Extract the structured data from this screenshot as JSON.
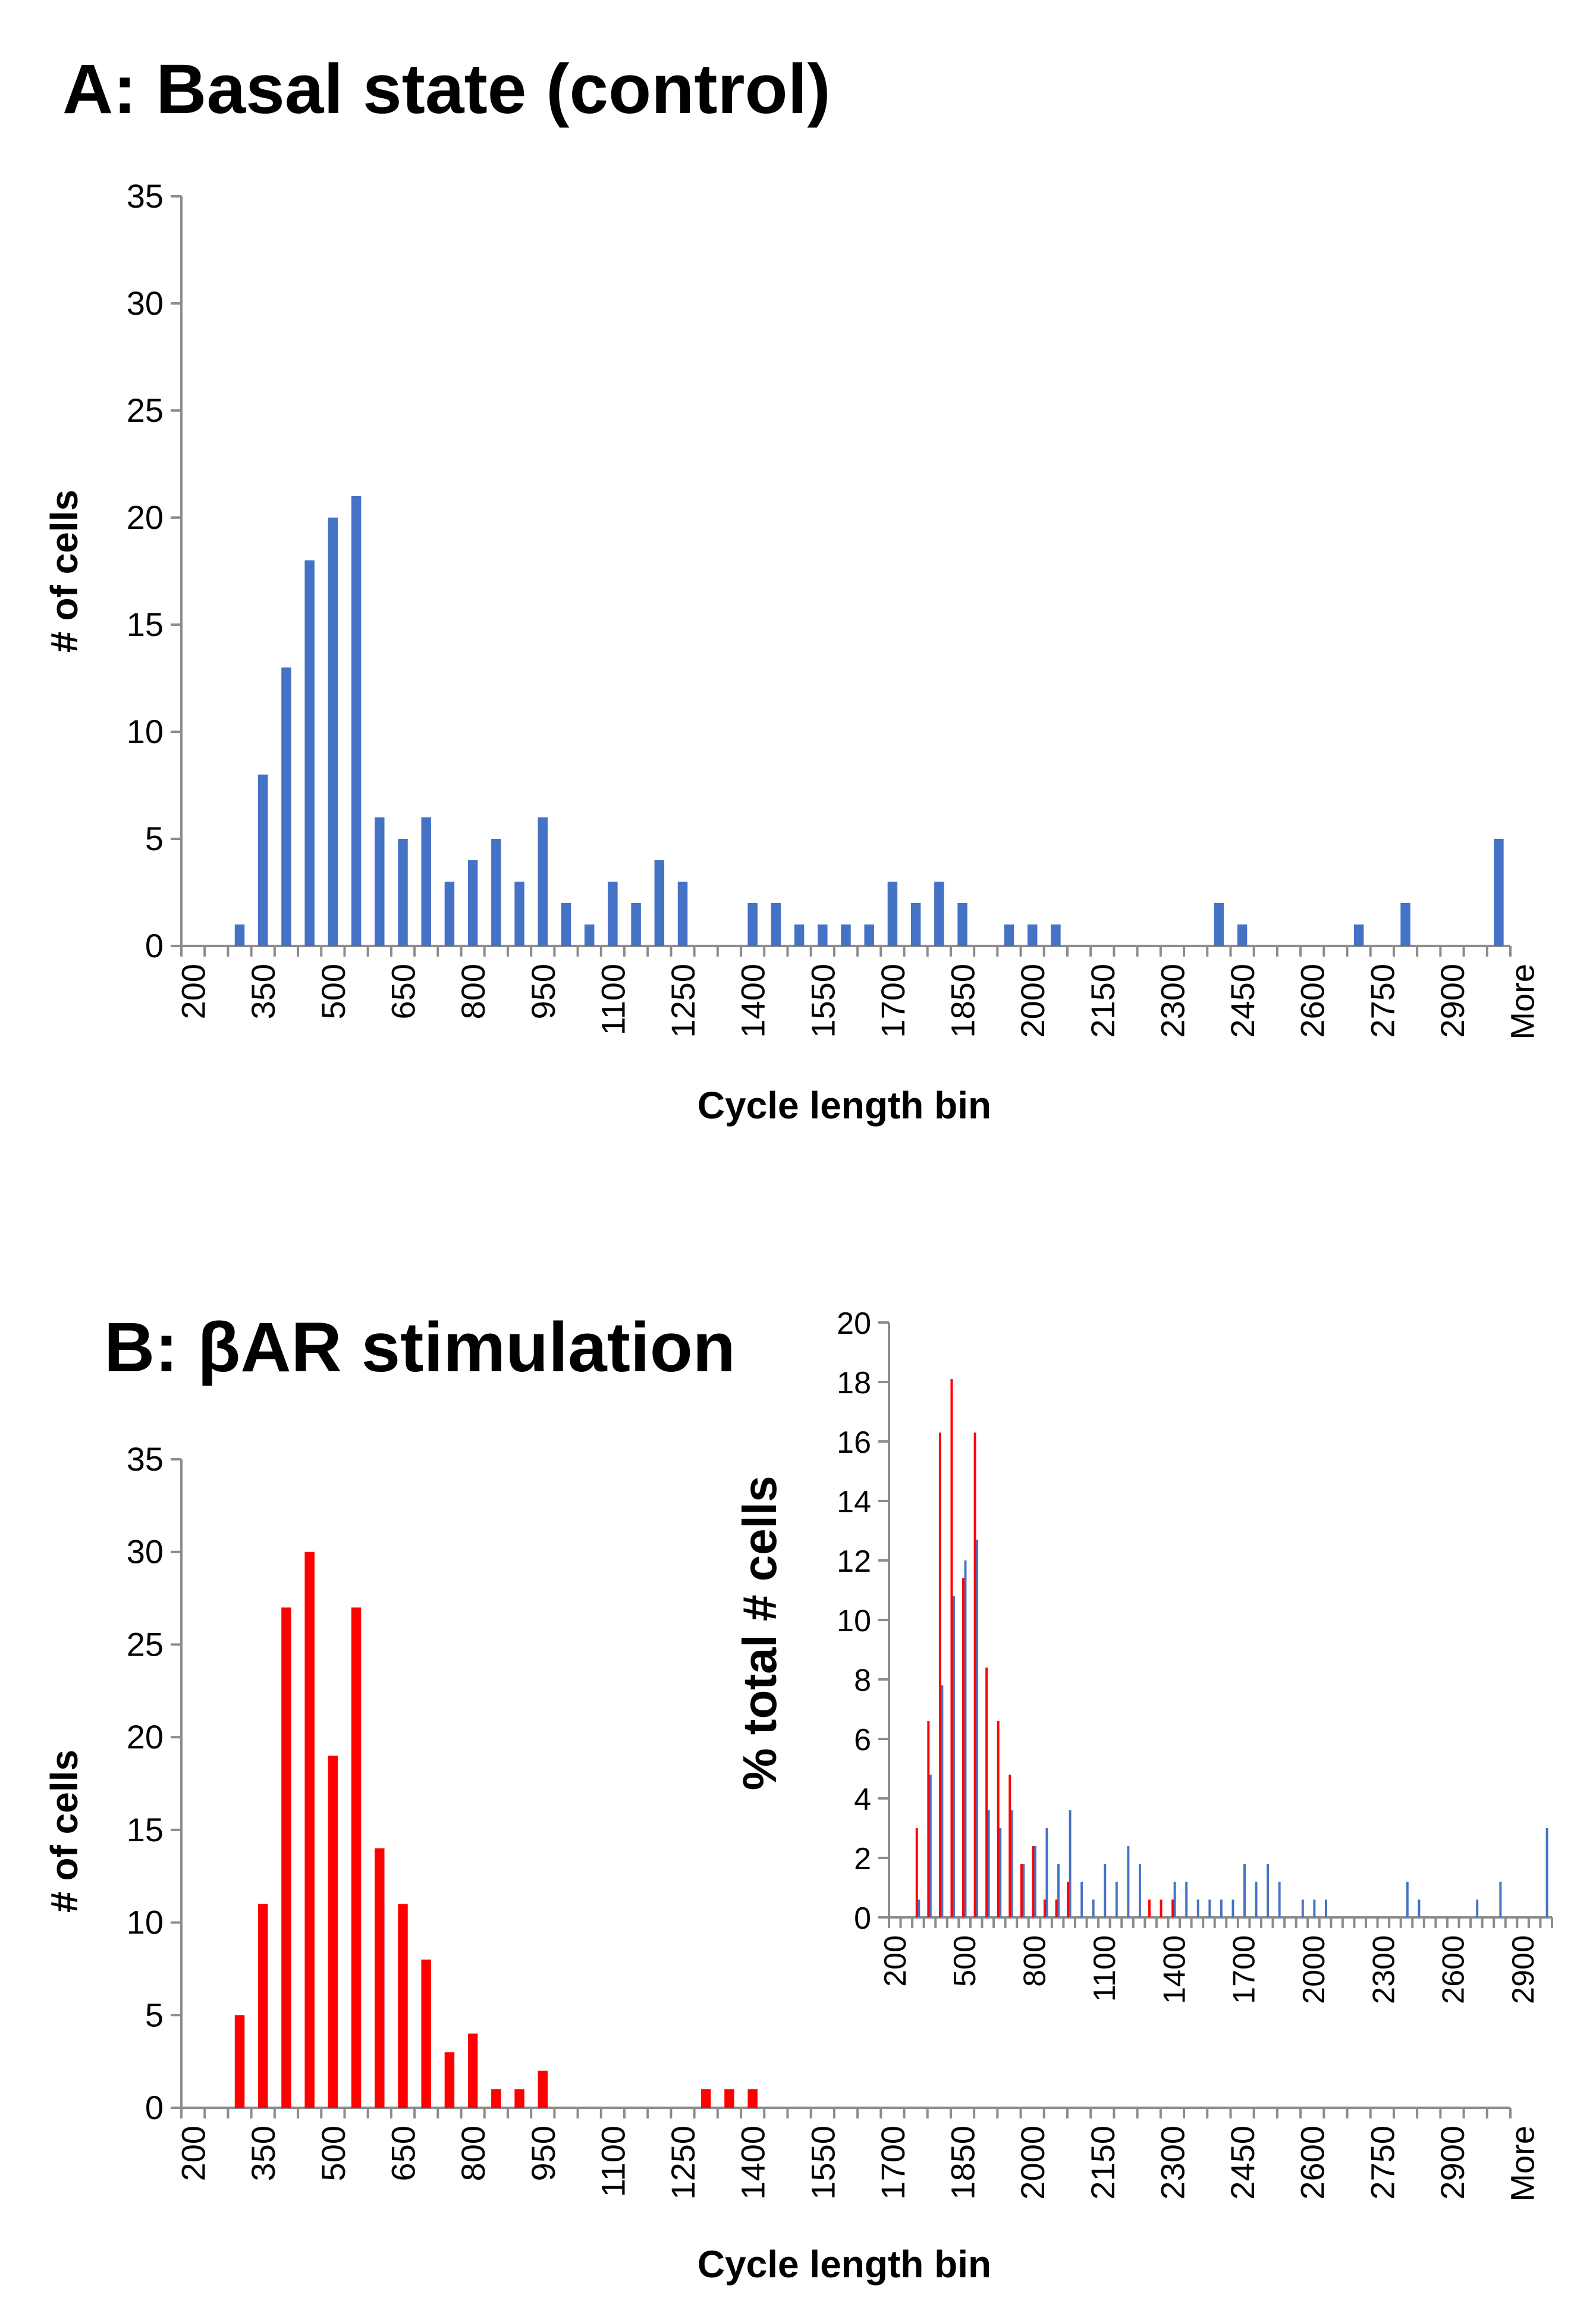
{
  "colors": {
    "control": "#4472c4",
    "stimulation": "#ff0000",
    "axis": "#8c8c8c"
  },
  "chart_data": [
    {
      "id": "A",
      "type": "bar",
      "title": "A: Basal state (control)",
      "xlabel": "Cycle length bin",
      "ylabel": "# of cells",
      "ylim": [
        0,
        35
      ],
      "yticks": [
        0,
        5,
        10,
        15,
        20,
        25,
        30,
        35
      ],
      "grid": false,
      "bins": [
        200,
        250,
        300,
        350,
        400,
        450,
        500,
        550,
        600,
        650,
        700,
        750,
        800,
        850,
        900,
        950,
        1000,
        1050,
        1100,
        1150,
        1200,
        1250,
        1300,
        1350,
        1400,
        1450,
        1500,
        1550,
        1600,
        1650,
        1700,
        1750,
        1800,
        1850,
        1900,
        1950,
        2000,
        2050,
        2100,
        2150,
        2200,
        2250,
        2300,
        2350,
        2400,
        2450,
        2500,
        2550,
        2600,
        2650,
        2700,
        2750,
        2800,
        2850,
        2900,
        2950,
        "More"
      ],
      "x_tick_labels": [
        "200",
        "350",
        "500",
        "650",
        "800",
        "950",
        "1100",
        "1250",
        "1400",
        "1550",
        "1700",
        "1850",
        "2000",
        "2150",
        "2300",
        "2450",
        "2600",
        "2750",
        "2900",
        "More"
      ],
      "series": [
        {
          "color": "#4472c4",
          "values": [
            0,
            0,
            1,
            8,
            13,
            18,
            20,
            21,
            6,
            5,
            6,
            3,
            4,
            5,
            3,
            6,
            2,
            1,
            3,
            2,
            4,
            3,
            0,
            0,
            2,
            2,
            1,
            1,
            1,
            1,
            3,
            2,
            3,
            2,
            0,
            1,
            1,
            1,
            0,
            0,
            0,
            0,
            0,
            0,
            2,
            1,
            0,
            0,
            0,
            0,
            1,
            0,
            2,
            0,
            0,
            0,
            5
          ]
        }
      ]
    },
    {
      "id": "B",
      "type": "bar",
      "title": "B: βAR stimulation",
      "xlabel": "Cycle length bin",
      "ylabel": "# of cells",
      "ylim": [
        0,
        35
      ],
      "yticks": [
        0,
        5,
        10,
        15,
        20,
        25,
        30,
        35
      ],
      "grid": false,
      "bins": [
        200,
        250,
        300,
        350,
        400,
        450,
        500,
        550,
        600,
        650,
        700,
        750,
        800,
        850,
        900,
        950,
        1000,
        1050,
        1100,
        1150,
        1200,
        1250,
        1300,
        1350,
        1400,
        1450,
        1500,
        1550,
        1600,
        1650,
        1700,
        1750,
        1800,
        1850,
        1900,
        1950,
        2000,
        2050,
        2100,
        2150,
        2200,
        2250,
        2300,
        2350,
        2400,
        2450,
        2500,
        2550,
        2600,
        2650,
        2700,
        2750,
        2800,
        2850,
        2900,
        2950,
        "More"
      ],
      "x_tick_labels": [
        "200",
        "350",
        "500",
        "650",
        "800",
        "950",
        "1100",
        "1250",
        "1400",
        "1550",
        "1700",
        "1850",
        "2000",
        "2150",
        "2300",
        "2450",
        "2600",
        "2750",
        "2900",
        "More"
      ],
      "series": [
        {
          "color": "#ff0000",
          "values": [
            0,
            0,
            5,
            11,
            27,
            30,
            19,
            27,
            14,
            11,
            8,
            3,
            4,
            1,
            1,
            2,
            0,
            0,
            0,
            0,
            0,
            0,
            1,
            1,
            1,
            0,
            0,
            0,
            0,
            0,
            0,
            0,
            0,
            0,
            0,
            0,
            0,
            0,
            0,
            0,
            0,
            0,
            0,
            0,
            0,
            0,
            0,
            0,
            0,
            0,
            0,
            0,
            0,
            0,
            0,
            0,
            0
          ]
        }
      ]
    },
    {
      "id": "B-inset",
      "type": "bar",
      "ylabel": "% total # cells",
      "ylim": [
        0,
        20
      ],
      "yticks": [
        0,
        2,
        4,
        6,
        8,
        10,
        12,
        14,
        16,
        18,
        20
      ],
      "x_tick_labels": [
        "200",
        "500",
        "800",
        "1100",
        "1400",
        "1700",
        "2000",
        "2300",
        "2600",
        "2900"
      ],
      "bins": [
        200,
        250,
        300,
        350,
        400,
        450,
        500,
        550,
        600,
        650,
        700,
        750,
        800,
        850,
        900,
        950,
        1000,
        1050,
        1100,
        1150,
        1200,
        1250,
        1300,
        1350,
        1400,
        1450,
        1500,
        1550,
        1600,
        1650,
        1700,
        1750,
        1800,
        1850,
        1900,
        1950,
        2000,
        2050,
        2100,
        2150,
        2200,
        2250,
        2300,
        2350,
        2400,
        2450,
        2500,
        2550,
        2600,
        2650,
        2700,
        2750,
        2800,
        2850,
        2900,
        2950,
        3000
      ],
      "series": [
        {
          "color": "#4472c4",
          "values": [
            0,
            0,
            0.6,
            4.8,
            7.8,
            10.8,
            12.0,
            12.7,
            3.6,
            3.0,
            3.6,
            1.8,
            2.4,
            3.0,
            1.8,
            3.6,
            1.2,
            0.6,
            1.8,
            1.2,
            2.4,
            1.8,
            0,
            0,
            1.2,
            1.2,
            0.6,
            0.6,
            0.6,
            0.6,
            1.8,
            1.2,
            1.8,
            1.2,
            0,
            0.6,
            0.6,
            0.6,
            0,
            0,
            0,
            0,
            0,
            0,
            1.2,
            0.6,
            0,
            0,
            0,
            0,
            0.6,
            0,
            1.2,
            0,
            0,
            0,
            3.0
          ]
        },
        {
          "color": "#ff0000",
          "values": [
            0,
            0,
            3.0,
            6.6,
            16.3,
            18.1,
            11.4,
            16.3,
            8.4,
            6.6,
            4.8,
            1.8,
            2.4,
            0.6,
            0.6,
            1.2,
            0,
            0,
            0,
            0,
            0,
            0,
            0.6,
            0.6,
            0.6,
            0,
            0,
            0,
            0,
            0,
            0,
            0,
            0,
            0,
            0,
            0,
            0,
            0,
            0,
            0,
            0,
            0,
            0,
            0,
            0,
            0,
            0,
            0,
            0,
            0,
            0,
            0,
            0,
            0,
            0,
            0,
            0
          ]
        }
      ]
    }
  ]
}
